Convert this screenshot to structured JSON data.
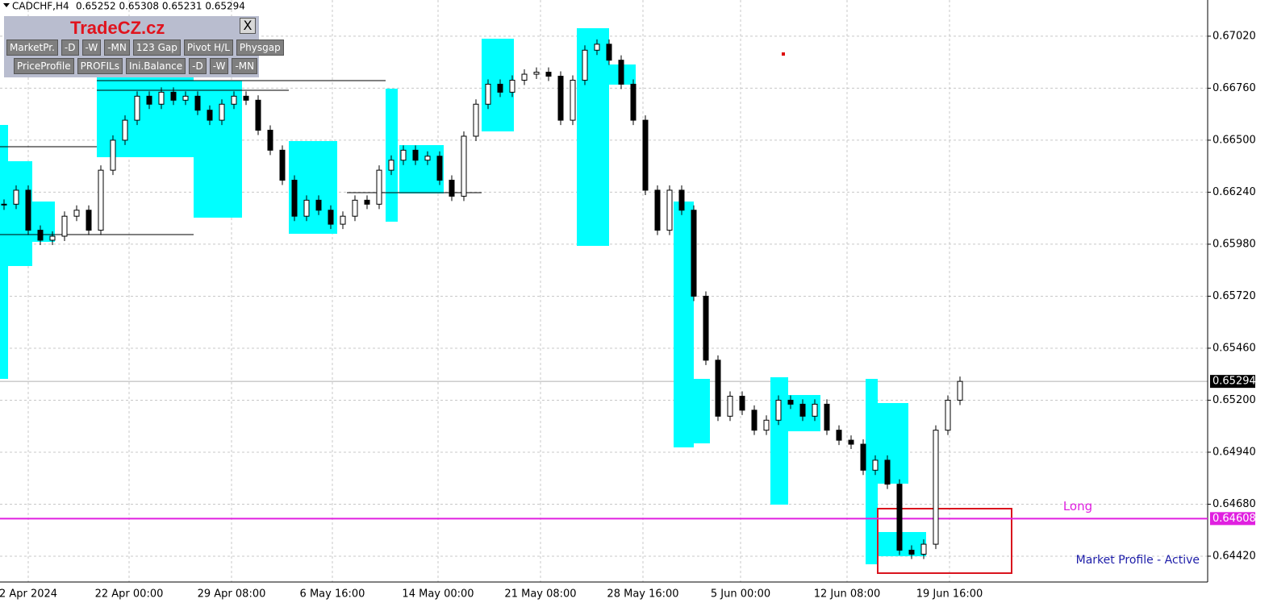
{
  "header": {
    "symbol": "CADCHF,H4",
    "ohlc": "0.65252 0.65308 0.65231 0.65294"
  },
  "toolbar": {
    "brand": "TradeCZ.cz",
    "close": "X",
    "row1": [
      "MarketPr.",
      "-D",
      "-W",
      "-MN",
      "123 Gap",
      "Pivot H/L",
      "Physgap"
    ],
    "row2": [
      "PriceProfile",
      "PROFILs",
      "Ini.Balance",
      "-D",
      "-W",
      "-MN"
    ]
  },
  "chart_data": {
    "type": "candlestick",
    "closes": [
      0.6618,
      0.6625,
      0.6605,
      0.66,
      0.6602,
      0.6612,
      0.6615,
      0.6605,
      0.6635,
      0.665,
      0.666,
      0.6672,
      0.6668,
      0.6674,
      0.667,
      0.6672,
      0.6665,
      0.666,
      0.6668,
      0.6672,
      0.667,
      0.6655,
      0.6645,
      0.663,
      0.6612,
      0.662,
      0.6615,
      0.6608,
      0.6612,
      0.662,
      0.6618,
      0.6635,
      0.664,
      0.6645,
      0.664,
      0.6642,
      0.663,
      0.6622,
      0.6652,
      0.6668,
      0.6678,
      0.6674,
      0.668,
      0.6683,
      0.6684,
      0.6682,
      0.666,
      0.668,
      0.6695,
      0.6698,
      0.669,
      0.6678,
      0.666,
      0.6625,
      0.6605,
      0.6625,
      0.6615,
      0.6572,
      0.654,
      0.6512,
      0.6522,
      0.6515,
      0.6505,
      0.651,
      0.652,
      0.6518,
      0.6512,
      0.6518,
      0.6505,
      0.65,
      0.6498,
      0.6485,
      0.649,
      0.6478,
      0.6445,
      0.6443,
      0.6448,
      0.6505,
      0.652,
      0.65294
    ],
    "x_labels": [
      "2 Apr 2024",
      "22 Apr 00:00",
      "29 Apr 08:00",
      "6 May 16:00",
      "14 May 00:00",
      "21 May 08:00",
      "28 May 16:00",
      "5 Jun 00:00",
      "12 Jun 08:00",
      "19 Jun 16:00"
    ],
    "ylim": [
      0.64299,
      0.67201
    ],
    "yticks": [
      {
        "value": 0.6702,
        "label": "0.67020"
      },
      {
        "value": 0.6676,
        "label": "0.66760"
      },
      {
        "value": 0.665,
        "label": "0.66500"
      },
      {
        "value": 0.6624,
        "label": "0.66240"
      },
      {
        "value": 0.6598,
        "label": "0.65980"
      },
      {
        "value": 0.6572,
        "label": "0.65720"
      },
      {
        "value": 0.6546,
        "label": "0.65460"
      },
      {
        "value": 0.652,
        "label": "0.65200"
      },
      {
        "value": 0.6494,
        "label": "0.64940"
      },
      {
        "value": 0.6468,
        "label": "0.64680"
      },
      {
        "value": 0.6442,
        "label": "0.64420"
      }
    ],
    "current_price": 0.65294,
    "long_level": {
      "value": 0.64608,
      "label": "Long"
    },
    "status": "Market Profile - Active",
    "grid": true
  }
}
